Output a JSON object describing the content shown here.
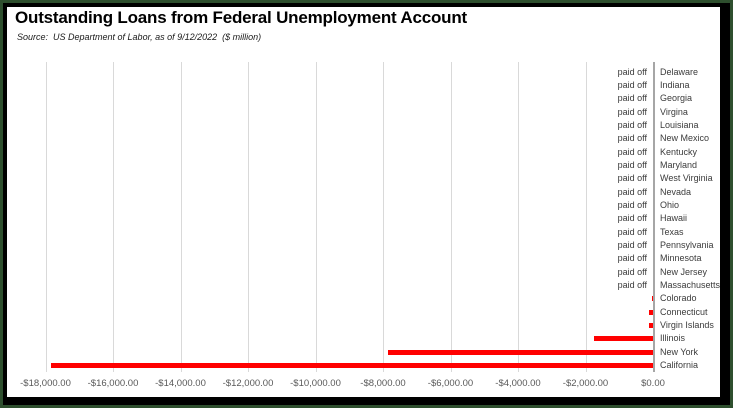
{
  "title": "Outstanding Loans from Federal Unemployment Account",
  "source": "Source:  US Department of Labor, as of 9/12/2022  ($ million)",
  "paid_off_label": "paid off",
  "colors": {
    "bar": "#ff0000",
    "gridline": "#d9d9d9",
    "zero_axis": "#a6a6a6",
    "frame_border": "#000000",
    "frame_outer_green": "#2e4f2e",
    "tick_text": "#595959",
    "label_text": "#3b3b3b"
  },
  "chart_data": {
    "type": "bar",
    "orientation": "horizontal",
    "units": "$ million",
    "title": "Outstanding Loans from Federal Unemployment Account",
    "subtitle": "Source:  US Department of Labor, as of 9/12/2022  ($ million)",
    "x_axis": {
      "min": 0,
      "max": 18000,
      "step": 2000,
      "direction": "reversed, $0 at right",
      "tick_labels": [
        "-$18,000.00",
        "-$16,000.00",
        "-$14,000.00",
        "-$12,000.00",
        "-$10,000.00",
        "-$8,000.00",
        "-$6,000.00",
        "-$4,000.00",
        "-$2,000.00",
        "$0.00"
      ]
    },
    "grid": "vertical gridlines every $2,000",
    "legend": null,
    "categories": [
      "Delaware",
      "Indiana",
      "Georgia",
      "Virgina",
      "Louisiana",
      "New Mexico",
      "Kentucky",
      "Maryland",
      "West Virginia",
      "Nevada",
      "Ohio",
      "Hawaii",
      "Texas",
      "Pennsylvania",
      "Minnesota",
      "New Jersey",
      "Massachusetts",
      "Colorado",
      "Connecticut",
      "Virgin Islands",
      "Illinois",
      "New York",
      "California"
    ],
    "states": [
      {
        "name": "Delaware",
        "status": "paid off",
        "value": 0
      },
      {
        "name": "Indiana",
        "status": "paid off",
        "value": 0
      },
      {
        "name": "Georgia",
        "status": "paid off",
        "value": 0
      },
      {
        "name": "Virgina",
        "status": "paid off",
        "value": 0
      },
      {
        "name": "Louisiana",
        "status": "paid off",
        "value": 0
      },
      {
        "name": "New Mexico",
        "status": "paid off",
        "value": 0
      },
      {
        "name": "Kentucky",
        "status": "paid off",
        "value": 0
      },
      {
        "name": "Maryland",
        "status": "paid off",
        "value": 0
      },
      {
        "name": "West Virginia",
        "status": "paid off",
        "value": 0
      },
      {
        "name": "Nevada",
        "status": "paid off",
        "value": 0
      },
      {
        "name": "Ohio",
        "status": "paid off",
        "value": 0
      },
      {
        "name": "Hawaii",
        "status": "paid off",
        "value": 0
      },
      {
        "name": "Texas",
        "status": "paid off",
        "value": 0
      },
      {
        "name": "Pennsylvania",
        "status": "paid off",
        "value": 0
      },
      {
        "name": "Minnesota",
        "status": "paid off",
        "value": 0
      },
      {
        "name": "New Jersey",
        "status": "paid off",
        "value": 0
      },
      {
        "name": "Massachusetts",
        "status": "paid off",
        "value": 0
      },
      {
        "name": "Colorado",
        "status": "outstanding",
        "value": 40
      },
      {
        "name": "Connecticut",
        "status": "outstanding",
        "value": 110
      },
      {
        "name": "Virgin Islands",
        "status": "outstanding",
        "value": 105
      },
      {
        "name": "Illinois",
        "status": "outstanding",
        "value": 1760
      },
      {
        "name": "New York",
        "status": "outstanding",
        "value": 7840
      },
      {
        "name": "California",
        "status": "outstanding",
        "value": 17850
      }
    ]
  }
}
